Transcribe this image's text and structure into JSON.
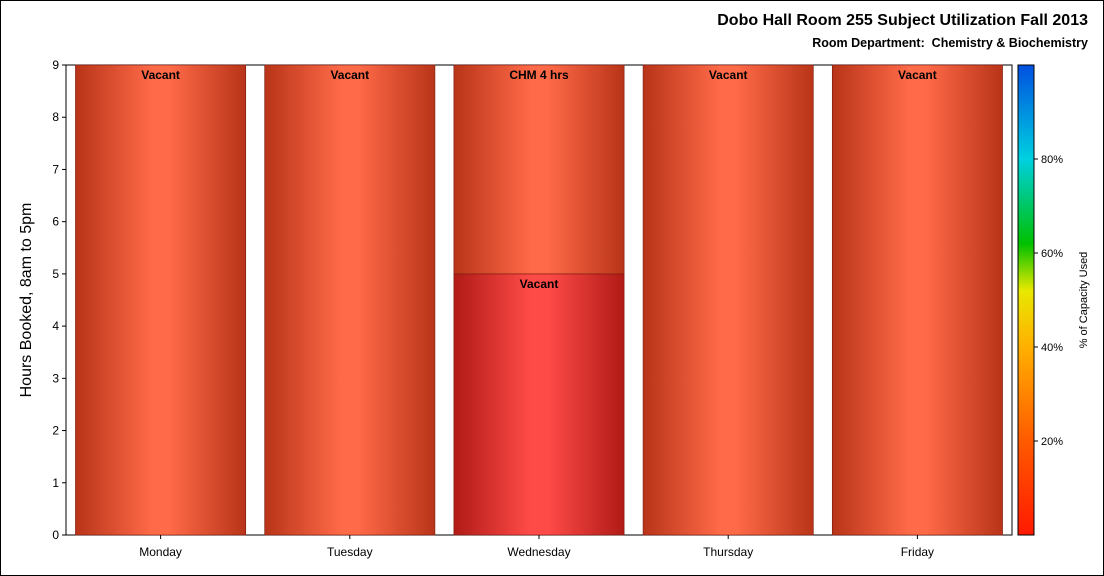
{
  "title": "Dobo Hall Room 255 Subject Utilization Fall 2013",
  "subtitle": "Room Department:  Chemistry & Biochemistry",
  "colors": {
    "vacant": "#f24844",
    "booked": "#f0603f",
    "axis": "#000000",
    "background": "#ffffff"
  },
  "chart_data": {
    "type": "bar",
    "stacked": true,
    "categories": [
      "Monday",
      "Tuesday",
      "Wednesday",
      "Thursday",
      "Friday"
    ],
    "series": [
      {
        "values": [
          0,
          0,
          5,
          0,
          0
        ],
        "labels": [
          "",
          "",
          "Vacant",
          "",
          ""
        ]
      },
      {
        "values": [
          9,
          9,
          4,
          9,
          9
        ],
        "labels": [
          "Vacant",
          "Vacant",
          "CHM 4 hrs",
          "Vacant",
          "Vacant"
        ]
      }
    ],
    "ylabel": "Hours Booked, 8am to 5pm",
    "xlabel": "",
    "ylim": [
      0,
      9
    ],
    "yticks": [
      0,
      1,
      2,
      3,
      4,
      5,
      6,
      7,
      8,
      9
    ],
    "colorbar": {
      "label": "% of Capacity Used",
      "ticks": [
        20,
        40,
        60,
        80
      ],
      "tick_labels": [
        "20%",
        "40%",
        "60%",
        "80%"
      ],
      "range": [
        0,
        100
      ]
    },
    "grid": false
  }
}
